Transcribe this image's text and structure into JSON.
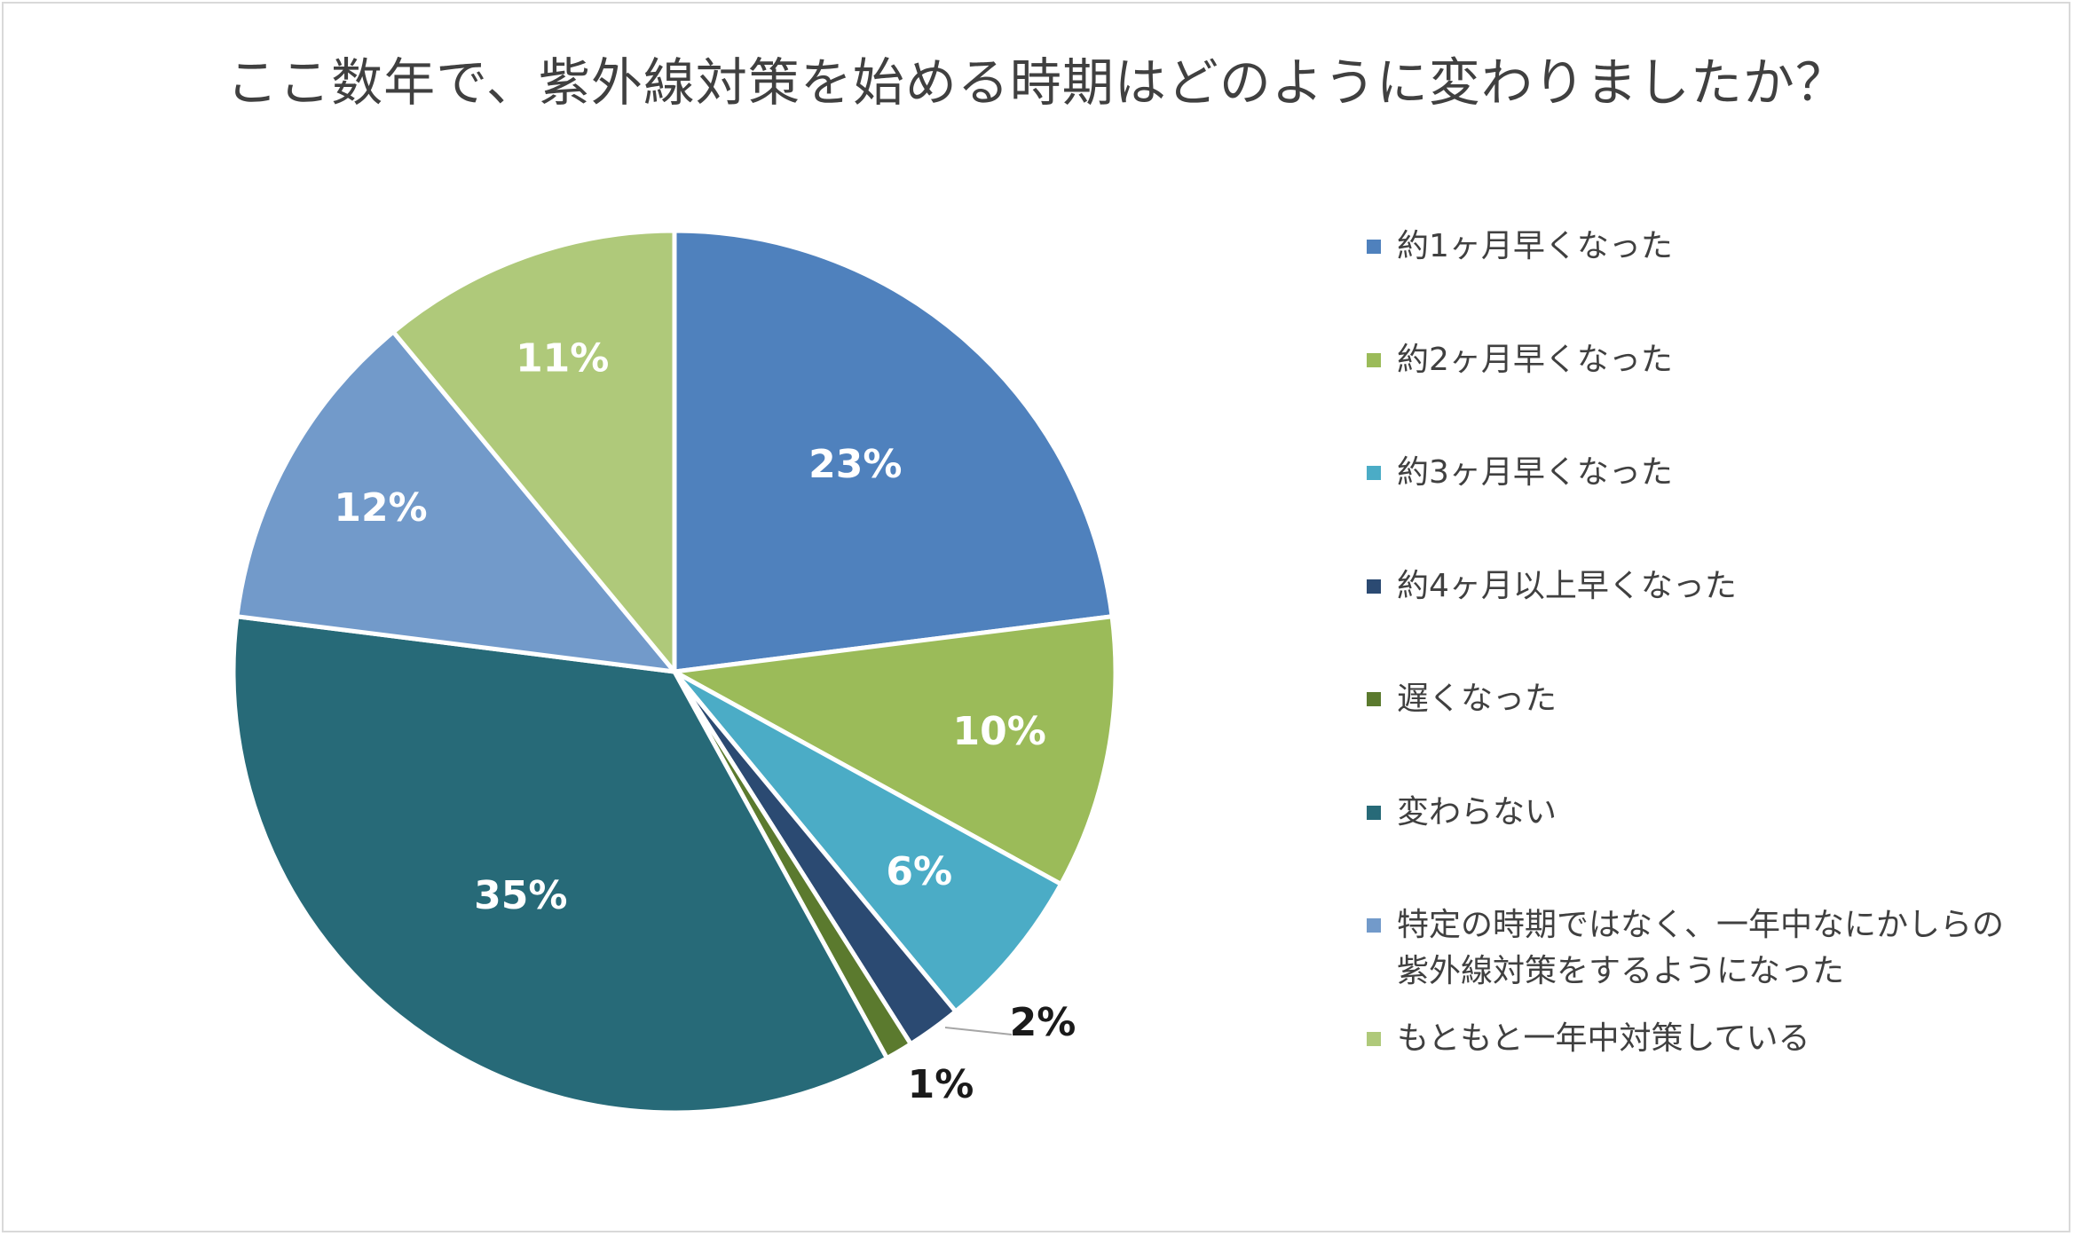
{
  "chart_data": {
    "type": "pie",
    "title": "ここ数年で、紫外線対策を始める時期はどのように変わりましたか？",
    "categories": [
      "約1ヶ月早くなった",
      "約2ヶ月早くなった",
      "約3ヶ月早くなった",
      "約4ヶ月以上早くなった",
      "遅くなった",
      "変わらない",
      "特定の時期ではなく、一年中なにかしらの\n紫外線対策をするようになった",
      "もともと一年中対策している"
    ],
    "values": [
      23,
      10,
      6,
      2,
      1,
      35,
      12,
      11
    ],
    "value_labels": [
      "23%",
      "10%",
      "6%",
      "2%",
      "1%",
      "35%",
      "12%",
      "11%"
    ],
    "colors": [
      "#4f81bd",
      "#9bbb59",
      "#4bacc6",
      "#2b4a72",
      "#5b7a2e",
      "#276a78",
      "#729aca",
      "#afc97a"
    ],
    "legend_position": "right",
    "label_colors": [
      "#ffffff",
      "#ffffff",
      "#ffffff",
      "#1a1a1a",
      "#1a1a1a",
      "#ffffff",
      "#ffffff",
      "#ffffff"
    ]
  }
}
